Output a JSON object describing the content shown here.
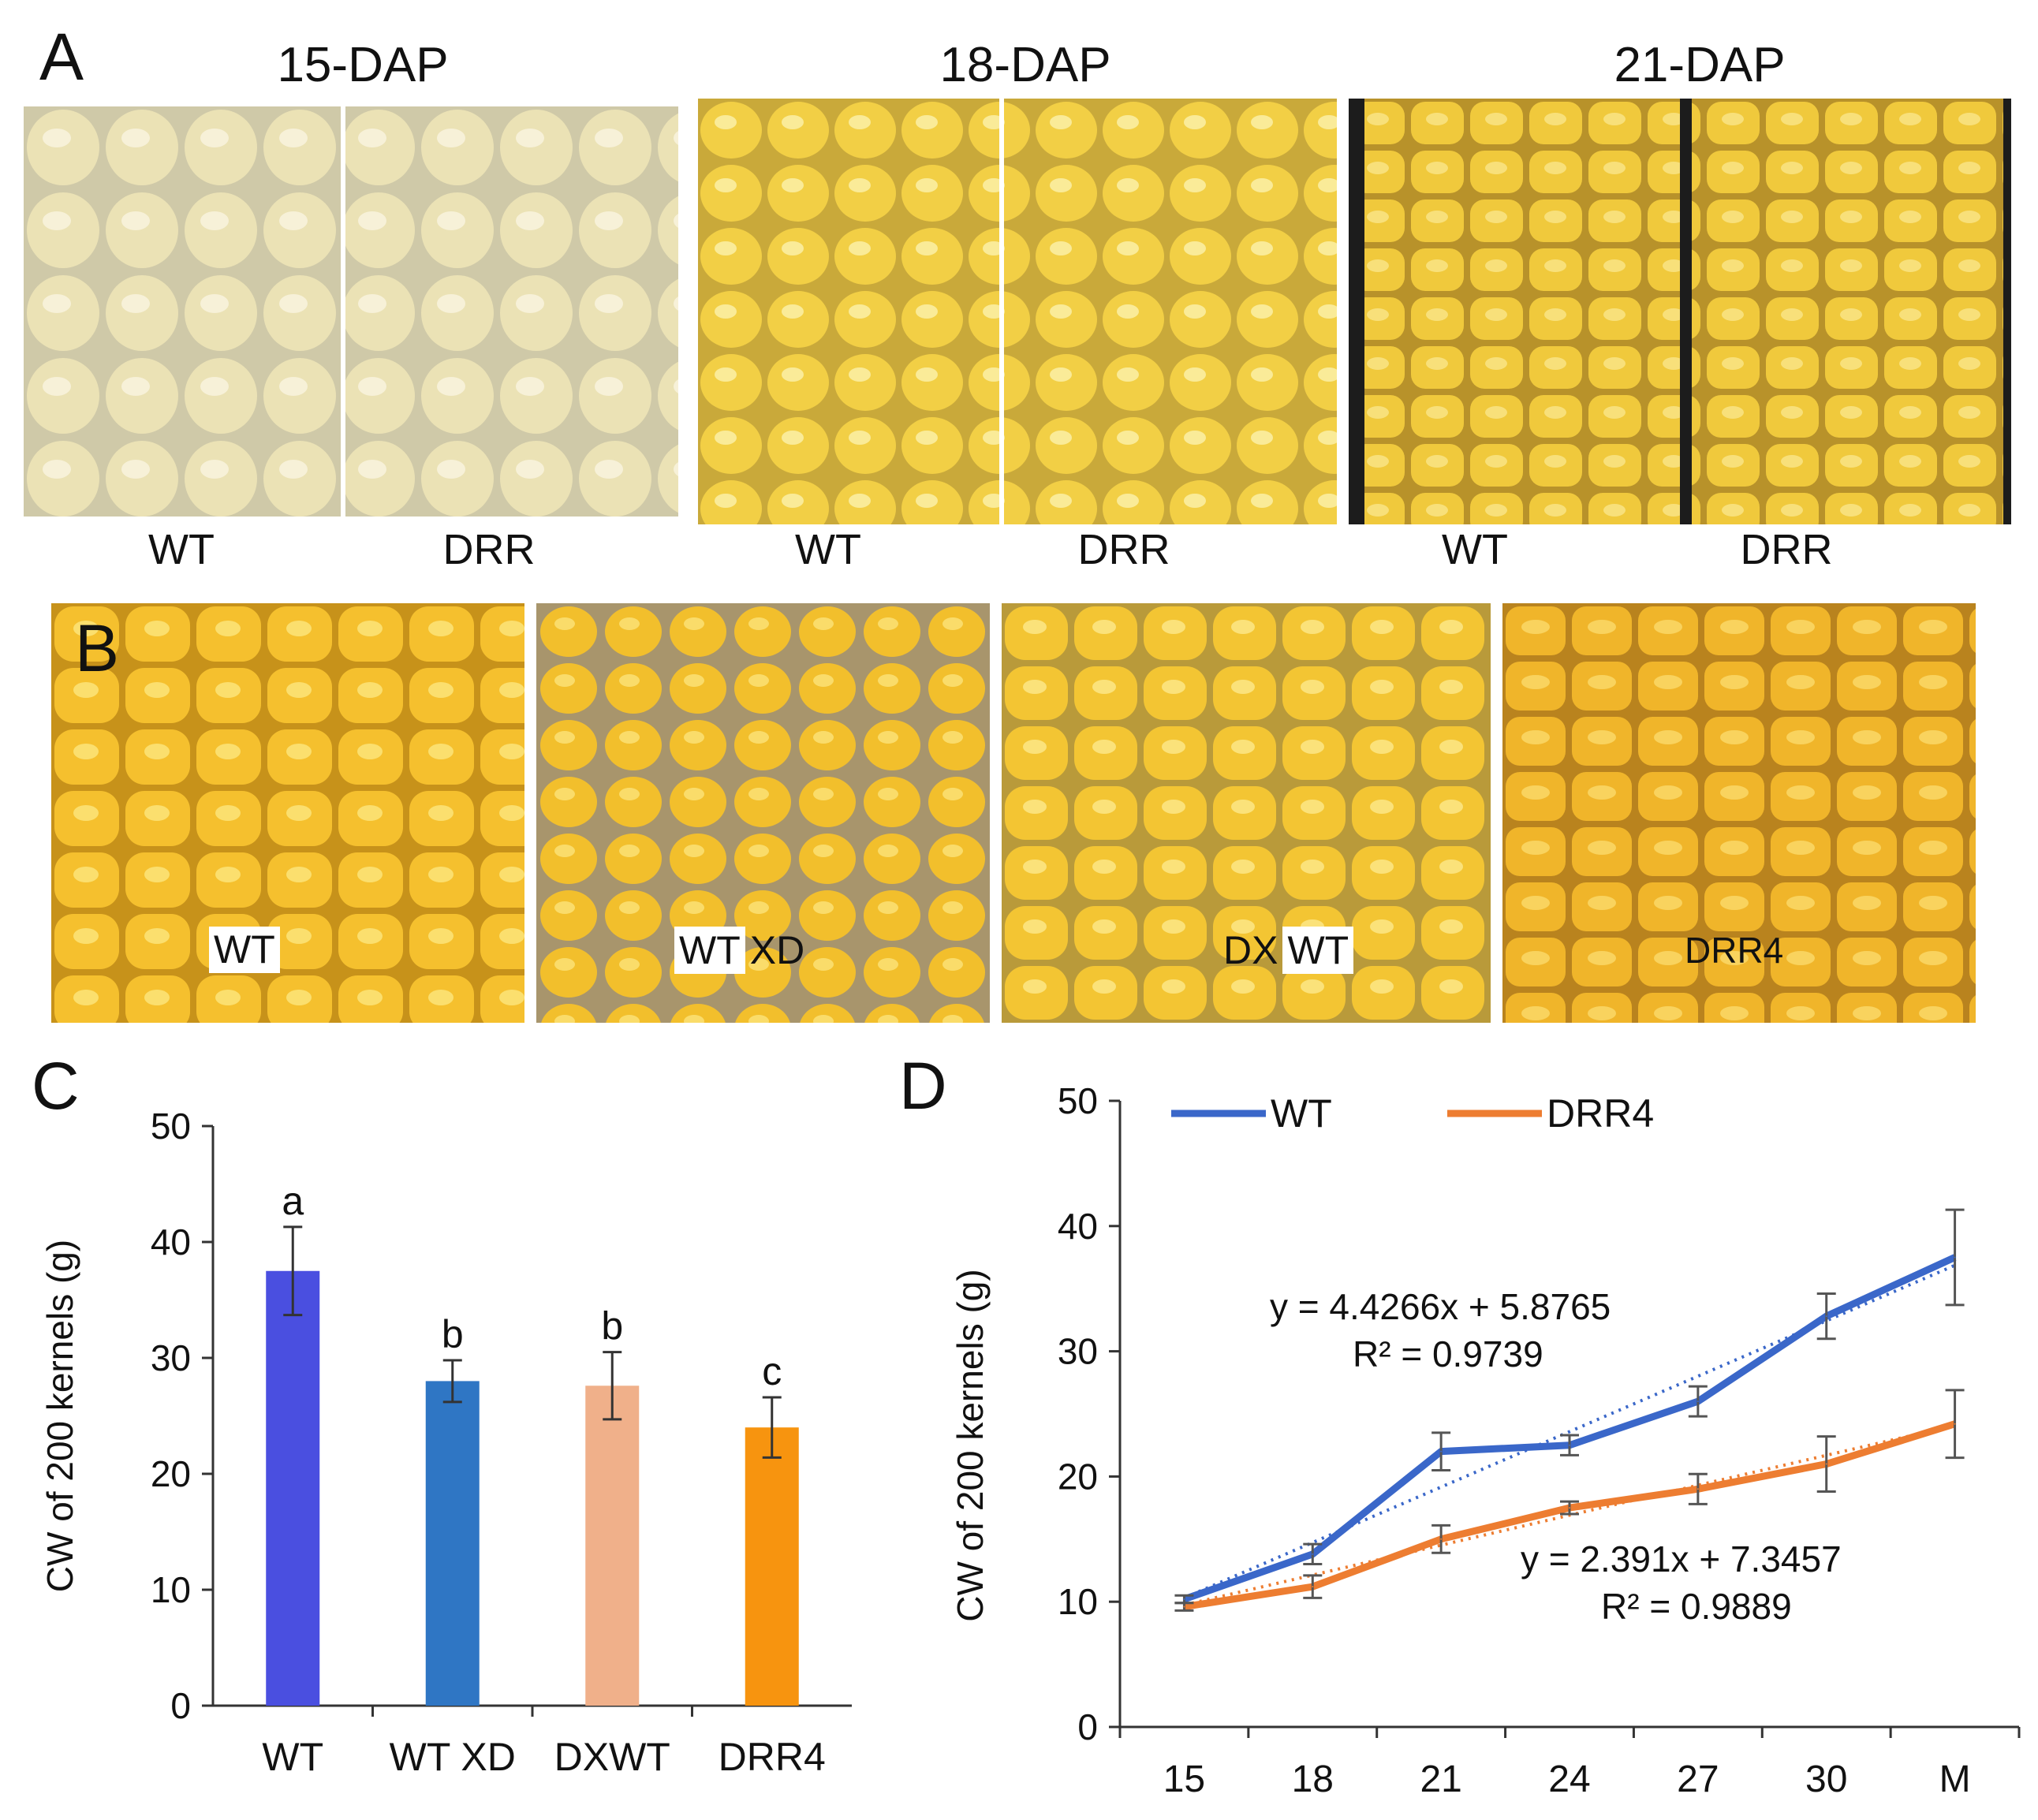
{
  "panelA": {
    "letter": "A",
    "groups": [
      {
        "title": "15-DAP",
        "labels": [
          "WT",
          "DRR"
        ]
      },
      {
        "title": "18-DAP",
        "labels": [
          "WT",
          "DRR"
        ]
      },
      {
        "title": "21-DAP",
        "labels": [
          "WT",
          "DRR"
        ]
      }
    ]
  },
  "panelB": {
    "letter": "B",
    "photos": [
      {
        "label": "WT"
      },
      {
        "label_a": "WT",
        "label_b": "XD"
      },
      {
        "label_a": "DX",
        "label_b": "WT"
      },
      {
        "label": "DRR4"
      }
    ]
  },
  "chart_data": [
    {
      "panel": "C",
      "type": "bar",
      "title": "",
      "xlabel": "",
      "ylabel": "CW of 200 kernels (g)",
      "ylim": [
        0,
        50
      ],
      "yticks": [
        0,
        10,
        20,
        30,
        40,
        50
      ],
      "categories": [
        "WT",
        "WTXD",
        "DXWT",
        "DRR4"
      ],
      "category_labels": [
        "WT",
        "WT XD",
        "DXWT",
        "DRR4"
      ],
      "values": [
        37.5,
        28.0,
        27.6,
        24.0
      ],
      "errors": [
        3.8,
        1.8,
        2.9,
        2.6
      ],
      "significance": [
        "a",
        "b",
        "b",
        "c"
      ],
      "colors": [
        "#4a4fe0",
        "#2f76c4",
        "#f0b08a",
        "#f7940f"
      ],
      "grid": false
    },
    {
      "panel": "D",
      "type": "line",
      "title": "",
      "xlabel": "",
      "ylabel": "CW of 200 kernels (g)",
      "ylim": [
        0,
        50
      ],
      "yticks": [
        0,
        10,
        20,
        30,
        40,
        50
      ],
      "x": [
        "15",
        "18",
        "21",
        "24",
        "27",
        "30",
        "M"
      ],
      "legend": "top-left",
      "series": [
        {
          "name": "WT",
          "color": "#3a67c9",
          "values": [
            10.2,
            13.8,
            22.0,
            22.5,
            26.0,
            32.8,
            37.5
          ],
          "errors": [
            0.3,
            0.8,
            1.5,
            0.8,
            1.2,
            1.8,
            3.8
          ],
          "trend": {
            "slope": 4.4266,
            "intercept": 5.8765
          },
          "equation": "y = 4.4266x + 5.8765",
          "r2": "R² = 0.9739"
        },
        {
          "name": "DRR4",
          "color": "#ed7d31",
          "values": [
            9.6,
            11.2,
            15.0,
            17.5,
            19.0,
            21.0,
            24.2
          ],
          "errors": [
            0.3,
            0.9,
            1.1,
            0.5,
            1.2,
            2.2,
            2.7
          ],
          "trend": {
            "slope": 2.391,
            "intercept": 7.3457
          },
          "equation": "y = 2.391x + 7.3457",
          "r2": "R² = 0.9889"
        }
      ],
      "grid": false
    }
  ]
}
